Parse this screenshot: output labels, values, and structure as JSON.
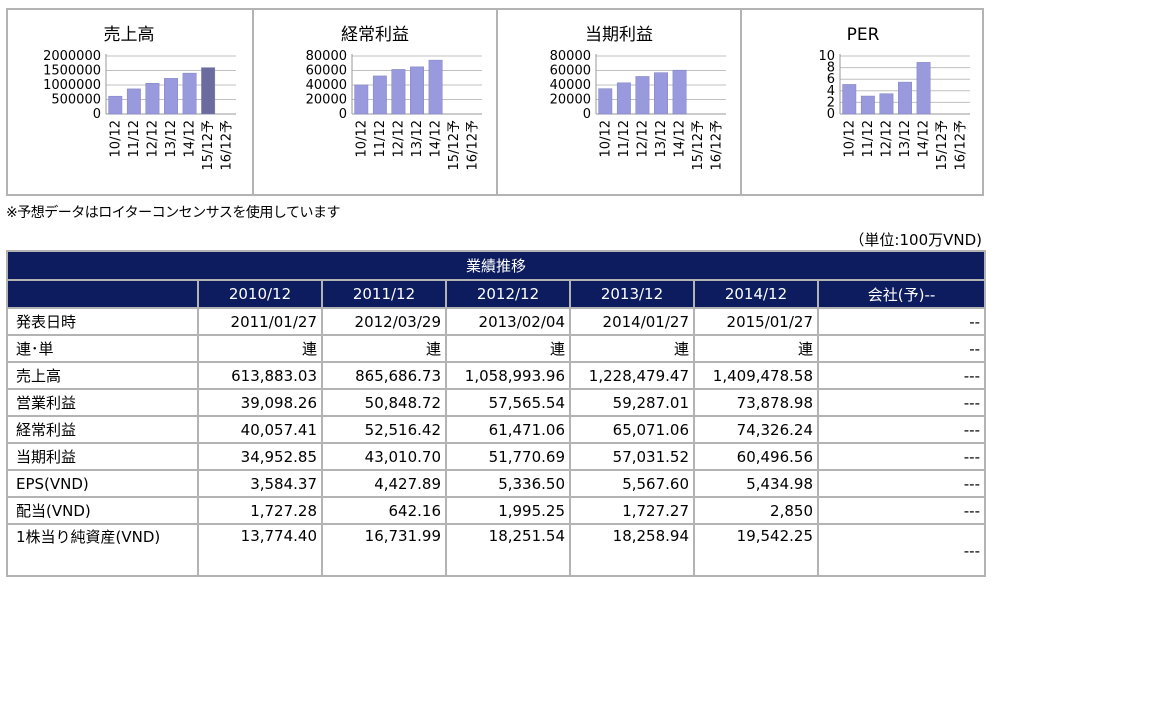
{
  "colors": {
    "bar": "#9999dd",
    "bar_highlight": "#6b6b9e",
    "grid": "#c0c0c0",
    "header_bg": "#0c1c5e",
    "border": "#b3b3b3"
  },
  "chart_data": [
    {
      "type": "bar",
      "title": "売上高",
      "categories": [
        "10/12",
        "11/12",
        "12/12",
        "13/12",
        "14/12",
        "15/12予",
        "16/12予"
      ],
      "values": [
        613883.03,
        865686.73,
        1058993.96,
        1228479.47,
        1409478.58,
        1600000,
        null
      ],
      "highlight_index": 5,
      "yticks": [
        "2000000",
        "1500000",
        "1000000",
        "500000",
        "0"
      ],
      "ylim": [
        0,
        2000000
      ],
      "grid": true
    },
    {
      "type": "bar",
      "title": "経常利益",
      "categories": [
        "10/12",
        "11/12",
        "12/12",
        "13/12",
        "14/12",
        "15/12予",
        "16/12予"
      ],
      "values": [
        40057.41,
        52516.42,
        61471.06,
        65071.06,
        74326.24,
        null,
        null
      ],
      "yticks": [
        "80000",
        "60000",
        "40000",
        "20000",
        "0"
      ],
      "ylim": [
        0,
        80000
      ],
      "grid": true
    },
    {
      "type": "bar",
      "title": "当期利益",
      "categories": [
        "10/12",
        "11/12",
        "12/12",
        "13/12",
        "14/12",
        "15/12予",
        "16/12予"
      ],
      "values": [
        34952.85,
        43010.7,
        51770.69,
        57031.52,
        60496.56,
        null,
        null
      ],
      "yticks": [
        "80000",
        "60000",
        "40000",
        "20000",
        "0"
      ],
      "ylim": [
        0,
        80000
      ],
      "grid": true
    },
    {
      "type": "bar",
      "title": "PER",
      "categories": [
        "10/12",
        "11/12",
        "12/12",
        "13/12",
        "14/12",
        "15/12予",
        "16/12予"
      ],
      "values": [
        5.1,
        3.1,
        3.5,
        5.5,
        8.9,
        null,
        null
      ],
      "yticks": [
        "10",
        "8",
        "6",
        "4",
        "2",
        "0"
      ],
      "ylim": [
        0,
        10
      ],
      "grid": true
    }
  ],
  "note": "※予想データはロイターコンセンサスを使用しています",
  "unit": "（単位:100万VND)",
  "table": {
    "title": "業績推移",
    "headers": [
      "",
      "2010/12",
      "2011/12",
      "2012/12",
      "2013/12",
      "2014/12",
      "会社(予)--"
    ],
    "rows": [
      {
        "label": "発表日時",
        "cells": [
          "2011/01/27",
          "2012/03/29",
          "2013/02/04",
          "2014/01/27",
          "2015/01/27"
        ],
        "last": "--"
      },
      {
        "label": "連･単",
        "cells": [
          "連",
          "連",
          "連",
          "連",
          "連"
        ],
        "last": "--"
      },
      {
        "label": "売上高",
        "cells": [
          "613,883.03",
          "865,686.73",
          "1,058,993.96",
          "1,228,479.47",
          "1,409,478.58"
        ],
        "last": "---"
      },
      {
        "label": "営業利益",
        "cells": [
          "39,098.26",
          "50,848.72",
          "57,565.54",
          "59,287.01",
          "73,878.98"
        ],
        "last": "---"
      },
      {
        "label": "経常利益",
        "cells": [
          "40,057.41",
          "52,516.42",
          "61,471.06",
          "65,071.06",
          "74,326.24"
        ],
        "last": "---"
      },
      {
        "label": "当期利益",
        "cells": [
          "34,952.85",
          "43,010.70",
          "51,770.69",
          "57,031.52",
          "60,496.56"
        ],
        "last": "---"
      },
      {
        "label": "EPS(VND)",
        "cells": [
          "3,584.37",
          "4,427.89",
          "5,336.50",
          "5,567.60",
          "5,434.98"
        ],
        "last": "---"
      },
      {
        "label": "配当(VND)",
        "cells": [
          "1,727.28",
          "642.16",
          "1,995.25",
          "1,727.27",
          "2,850"
        ],
        "last": "---"
      },
      {
        "label": "1株当り純資産(VND)",
        "cells": [
          "13,774.40",
          "16,731.99",
          "18,251.54",
          "18,258.94",
          "19,542.25"
        ],
        "last": "---"
      }
    ]
  }
}
